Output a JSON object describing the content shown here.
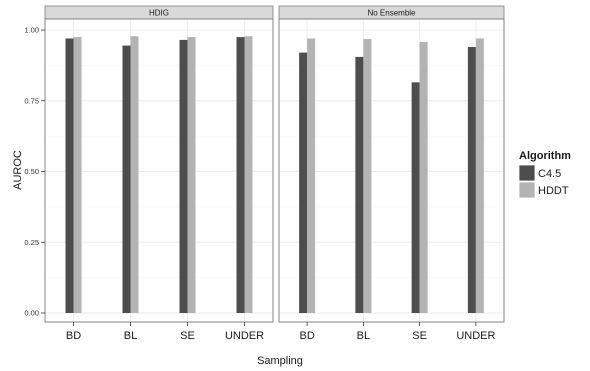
{
  "chart_data": {
    "type": "bar",
    "facets": [
      "HDIG",
      "No Ensemble"
    ],
    "categories": [
      "BD",
      "BL",
      "SE",
      "UNDER"
    ],
    "xlabel": "Sampling",
    "ylabel": "AUROC",
    "ylim": [
      0,
      1
    ],
    "yticks": [
      0.0,
      0.25,
      0.5,
      0.75,
      1.0
    ],
    "ytick_labels": [
      "0.00",
      "0.25",
      "0.50",
      "0.75",
      "1.00"
    ],
    "grid": true,
    "legend": {
      "title": "Algorithm",
      "placement": "right"
    },
    "series": [
      {
        "name": "C4.5",
        "color": "#4d4d4d",
        "values": {
          "HDIG": [
            0.97,
            0.945,
            0.965,
            0.975
          ],
          "No Ensemble": [
            0.92,
            0.905,
            0.815,
            0.94
          ]
        }
      },
      {
        "name": "HDDT",
        "color": "#b3b3b3",
        "values": {
          "HDIG": [
            0.975,
            0.978,
            0.975,
            0.978
          ],
          "No Ensemble": [
            0.97,
            0.968,
            0.958,
            0.97
          ]
        }
      }
    ]
  }
}
